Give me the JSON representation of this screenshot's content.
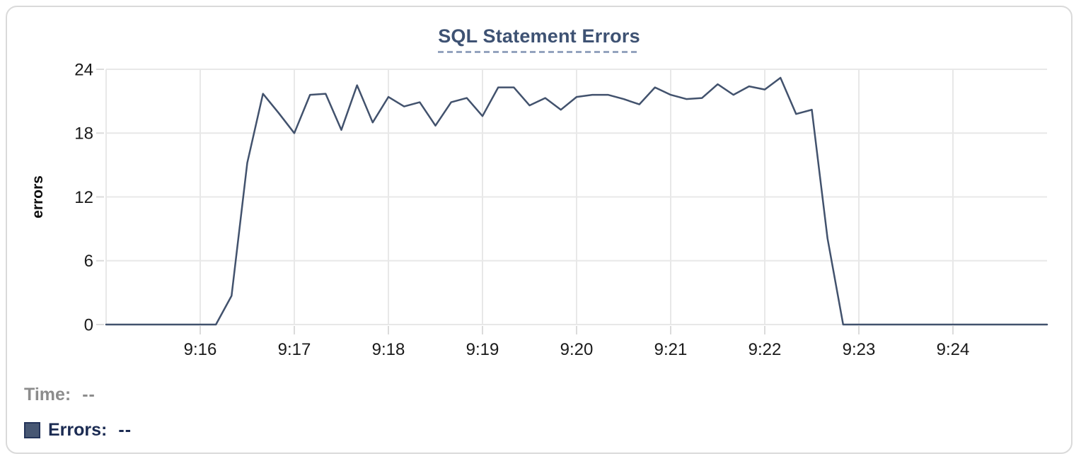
{
  "card": {
    "type": "metric-chart-card"
  },
  "tooltip": {
    "time_label": "Time:",
    "time_value": "--",
    "errors_label": "Errors:",
    "errors_value": "--"
  },
  "colors": {
    "line": "#42526d",
    "swatch_fill": "#475773",
    "swatch_border": "#24345a",
    "title": "#3e5273",
    "title_underline": "#94a3be",
    "axis_text": "#1a1a1a",
    "axis_label_text": "#0f0f0f",
    "muted_text": "#8c8c8c",
    "errors_text": "#1b2b52",
    "gridline": "#e8e8e8",
    "tick": "#dbdbdb",
    "card_border": "#dadada"
  },
  "chart_data": {
    "type": "line",
    "title": "SQL Statement Errors",
    "xlabel": "",
    "ylabel": "errors",
    "ylim": [
      0,
      24
    ],
    "y_gridlines": [
      0,
      6,
      12,
      18,
      24
    ],
    "y_tick_labels": [
      "0",
      "6",
      "12",
      "18",
      "24"
    ],
    "x_start_time": "9:15:00",
    "x_end_time": "9:25:00",
    "x_interval_seconds": 10,
    "x_tick_labels": [
      "9:16",
      "9:17",
      "9:18",
      "9:19",
      "9:20",
      "9:21",
      "9:22",
      "9:23",
      "9:24"
    ],
    "grid": true,
    "legend_position": "below-left",
    "series": [
      {
        "name": "Errors",
        "values": [
          0,
          0,
          0,
          0,
          0,
          0,
          0,
          0,
          2.7,
          15.2,
          21.7,
          19.9,
          18,
          21.6,
          21.7,
          18.3,
          22.5,
          19,
          21.4,
          20.5,
          20.9,
          18.7,
          20.9,
          21.3,
          19.6,
          22.3,
          22.3,
          20.6,
          21.3,
          20.2,
          21.4,
          21.6,
          21.6,
          21.2,
          20.7,
          22.3,
          21.6,
          21.2,
          21.3,
          22.6,
          21.6,
          22.4,
          22.1,
          23.2,
          19.8,
          20.2,
          8.1,
          0,
          0,
          0,
          0,
          0,
          0,
          0,
          0,
          0,
          0,
          0,
          0,
          0,
          0
        ]
      }
    ]
  }
}
